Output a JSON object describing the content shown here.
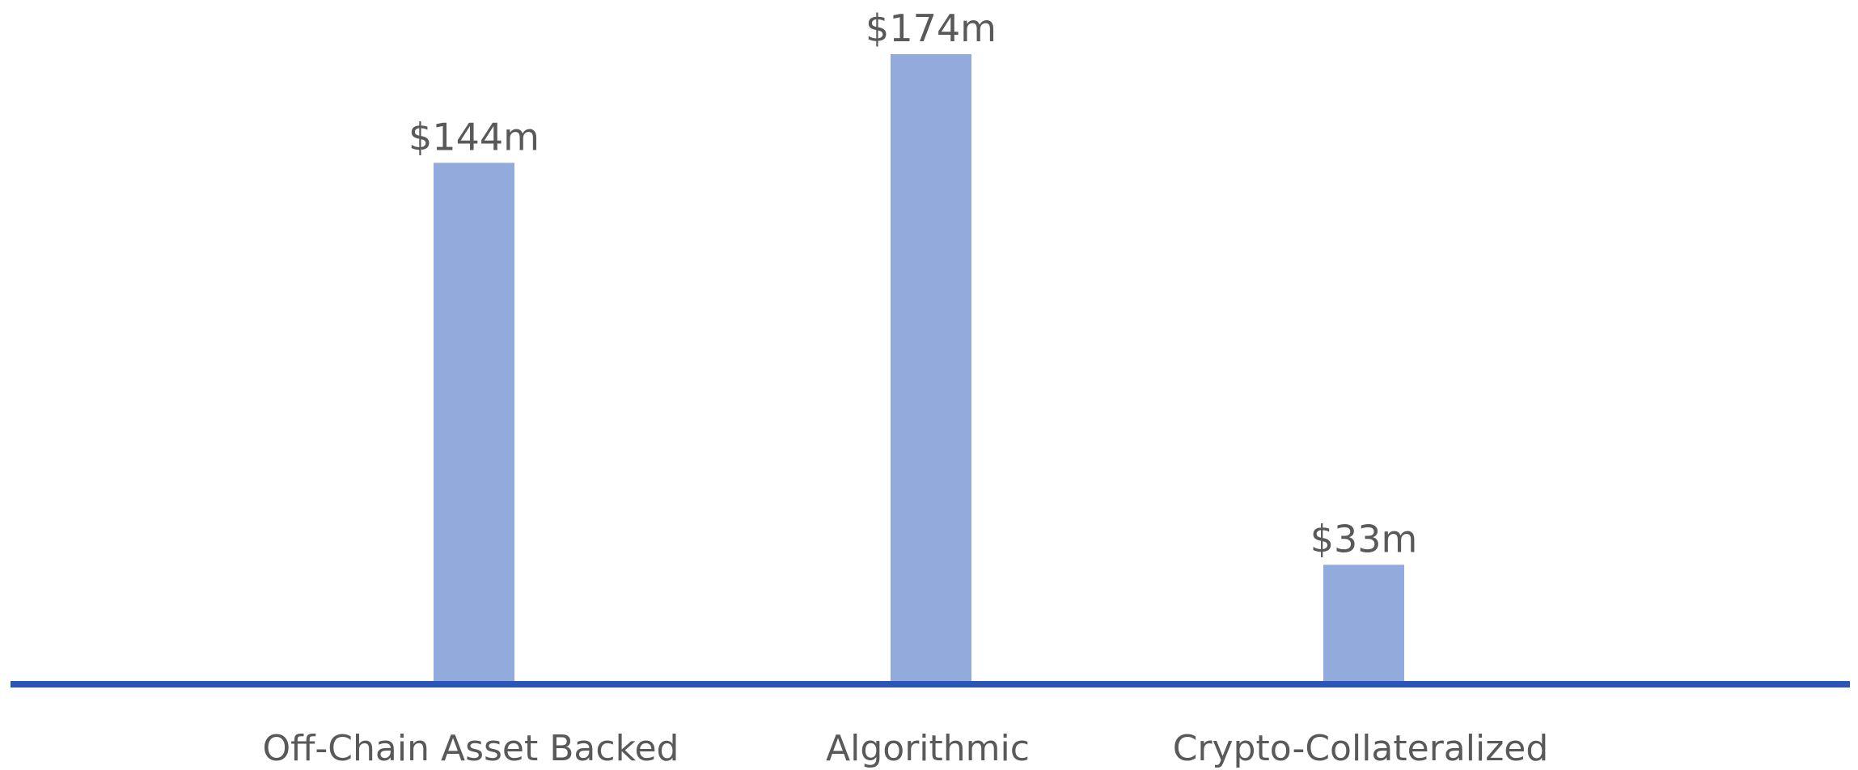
{
  "chart_data": {
    "type": "bar",
    "categories": [
      "Off-Chain Asset Backed",
      "Algorithmic",
      "Crypto-Collateralized"
    ],
    "values": [
      144,
      174,
      33
    ],
    "data_labels": [
      "$144m",
      "$174m",
      "$33m"
    ],
    "title": "",
    "xlabel": "",
    "ylabel": "",
    "ylim": [
      0,
      174
    ],
    "grid": false,
    "legend": "none",
    "colors": {
      "bar": "#92aadc",
      "axis": "#2b56b5",
      "text": "#595959"
    }
  }
}
